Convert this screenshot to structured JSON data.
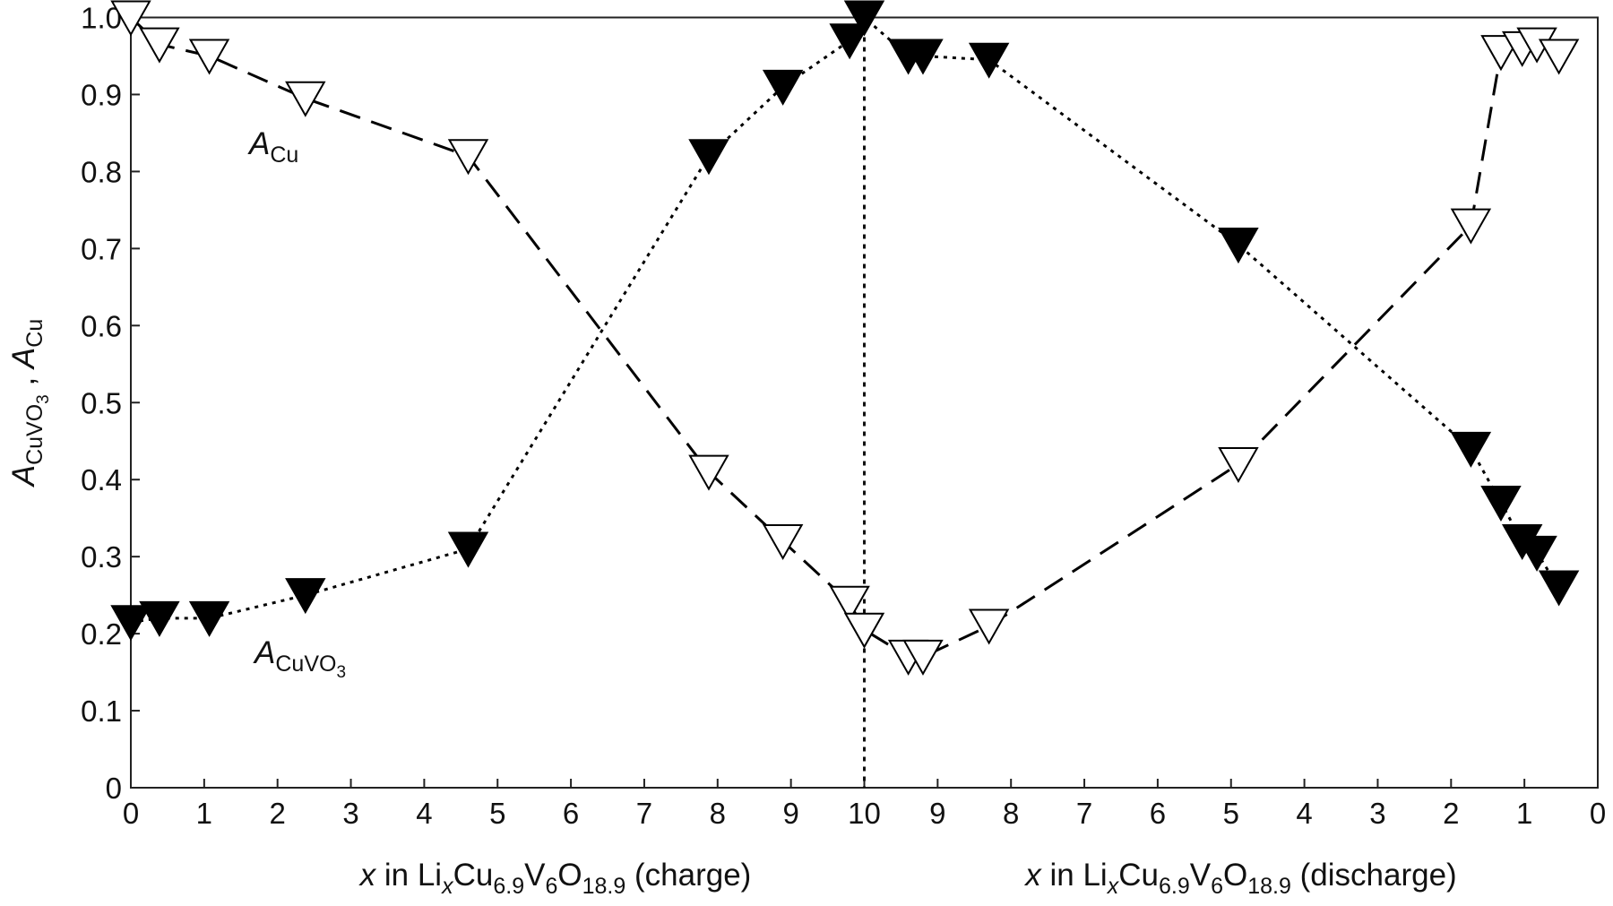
{
  "chart_data": {
    "type": "line",
    "x_label_charge": [
      {
        "text": "x",
        "italic": true
      },
      {
        "text": " in Li"
      },
      {
        "text": "x",
        "italic": true,
        "sub": 1
      },
      {
        "text": "Cu"
      },
      {
        "text": "6.9",
        "sub": 1
      },
      {
        "text": "V"
      },
      {
        "text": "6",
        "sub": 1
      },
      {
        "text": "O"
      },
      {
        "text": "18.9",
        "sub": 1
      },
      {
        "text": " (charge)"
      }
    ],
    "x_label_discharge": [
      {
        "text": "x",
        "italic": true
      },
      {
        "text": " in Li"
      },
      {
        "text": "x",
        "italic": true,
        "sub": 1
      },
      {
        "text": "Cu"
      },
      {
        "text": "6.9",
        "sub": 1
      },
      {
        "text": "V"
      },
      {
        "text": "6",
        "sub": 1
      },
      {
        "text": "O"
      },
      {
        "text": "18.9",
        "sub": 1
      },
      {
        "text": " (discharge)"
      }
    ],
    "y_label": [
      {
        "text": "A",
        "italic": true
      },
      {
        "text": "CuVO",
        "sub": 1
      },
      {
        "text": "3",
        "sub": 2
      },
      {
        "text": " , "
      },
      {
        "text": "A",
        "italic": true
      },
      {
        "text": "Cu",
        "sub": 1
      }
    ],
    "annotations": [
      [
        {
          "text": "A",
          "italic": true
        },
        {
          "text": "Cu",
          "sub": 1
        }
      ],
      [
        {
          "text": "A",
          "italic": true
        },
        {
          "text": "CuVO",
          "sub": 1
        },
        {
          "text": "3",
          "sub": 2
        }
      ]
    ],
    "x": [
      0,
      0.39,
      1.07,
      2.38,
      4.6,
      7.88,
      8.89,
      9.8,
      10,
      10.6,
      10.8,
      11.7,
      15.1,
      18.27,
      18.68,
      18.97,
      19.17,
      19.47
    ],
    "series": [
      {
        "color": "#000000",
        "marker_fill": "#000000",
        "line_style": "dotted",
        "values": [
          0.215,
          0.22,
          0.22,
          0.25,
          0.31,
          0.82,
          0.91,
          0.97,
          1.0,
          0.95,
          0.95,
          0.945,
          0.705,
          0.44,
          0.37,
          0.32,
          0.305,
          0.26
        ]
      },
      {
        "color": "#000000",
        "marker_fill": "#ffffff",
        "line_style": "dashed",
        "values": [
          1.0,
          0.965,
          0.95,
          0.895,
          0.82,
          0.41,
          0.32,
          0.24,
          0.205,
          0.17,
          0.17,
          0.21,
          0.42,
          0.73,
          0.955,
          0.96,
          0.965,
          0.95
        ]
      }
    ],
    "vline": 10,
    "xlim": [
      0,
      20
    ],
    "ylim": [
      0,
      1
    ],
    "xticks": [
      0,
      1,
      2,
      3,
      4,
      5,
      6,
      7,
      8,
      9,
      10,
      {
        "value": 11,
        "label": "9"
      },
      {
        "value": 12,
        "label": "8"
      },
      {
        "value": 13,
        "label": "7"
      },
      {
        "value": 14,
        "label": "6"
      },
      {
        "value": 15,
        "label": "5"
      },
      {
        "value": 16,
        "label": "4"
      },
      {
        "value": 17,
        "label": "3"
      },
      {
        "value": 18,
        "label": "2"
      },
      {
        "value": 19,
        "label": "1"
      },
      {
        "value": 20,
        "label": "0"
      }
    ],
    "yticks": [
      0,
      0.1,
      0.2,
      0.3,
      0.4,
      0.5,
      0.6,
      0.7,
      0.8,
      0.9,
      {
        "value": 1,
        "label": "1.0"
      }
    ]
  }
}
